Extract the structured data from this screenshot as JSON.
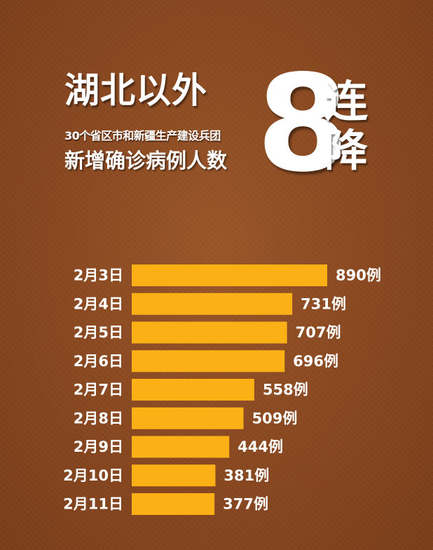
{
  "header": {
    "title_main": "湖北以外",
    "title_sub1": "30个省区市和新疆生产建设兵团",
    "title_sub2": "新增确诊病例人数",
    "big_number": "8",
    "side_char_1": "连",
    "side_char_2": "降"
  },
  "colors": {
    "bar": "#fbb015",
    "background": "#8a4a22",
    "text": "#ffffff"
  },
  "chart_data": {
    "type": "bar",
    "orientation": "horizontal",
    "categories": [
      "2月3日",
      "2月4日",
      "2月5日",
      "2月6日",
      "2月7日",
      "2月8日",
      "2月9日",
      "2月10日",
      "2月11日"
    ],
    "values": [
      890,
      731,
      707,
      696,
      558,
      509,
      444,
      381,
      377
    ],
    "data_labels": [
      "890例",
      "731例",
      "707例",
      "696例",
      "558例",
      "509例",
      "444例",
      "381例",
      "377例"
    ],
    "unit": "例",
    "xlim": [
      0,
      890
    ],
    "grid": false,
    "legend": "none"
  }
}
